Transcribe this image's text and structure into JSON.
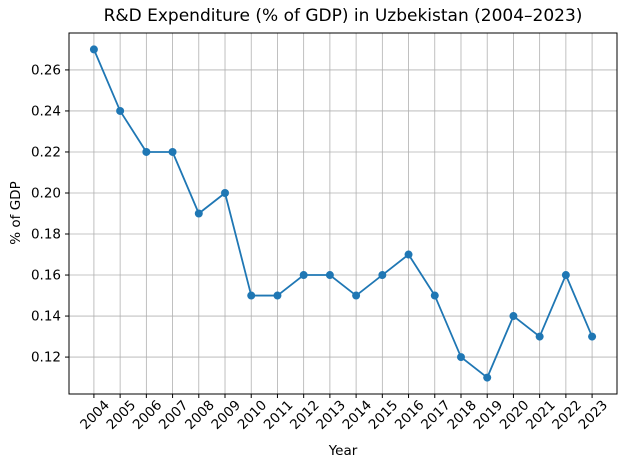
{
  "figure": {
    "background": "#ffffff"
  },
  "chart_data": {
    "type": "line",
    "title": "R&D Expenditure (% of GDP) in Uzbekistan (2004–2023)",
    "xlabel": "Year",
    "ylabel": "% of GDP",
    "x": [
      "2004",
      "2005",
      "2006",
      "2007",
      "2008",
      "2009",
      "2010",
      "2011",
      "2012",
      "2013",
      "2014",
      "2015",
      "2016",
      "2017",
      "2018",
      "2019",
      "2020",
      "2021",
      "2022",
      "2023"
    ],
    "values": [
      0.27,
      0.24,
      0.22,
      0.22,
      0.19,
      0.2,
      0.15,
      0.15,
      0.16,
      0.16,
      0.15,
      0.16,
      0.17,
      0.15,
      0.12,
      0.11,
      0.14,
      0.13,
      0.16,
      0.13
    ],
    "ylim": [
      0.102,
      0.278
    ],
    "yticks": [
      0.12,
      0.14,
      0.16,
      0.18,
      0.2,
      0.22,
      0.24,
      0.26
    ],
    "y_tick_decimals": 2,
    "x_tick_rotation_deg": 45,
    "grid": true,
    "legend": null,
    "line_color": "#1f77b4",
    "marker": "circle",
    "grid_color": "#b0b0b0",
    "axis_color": "#000000",
    "text_color": "#000000"
  }
}
